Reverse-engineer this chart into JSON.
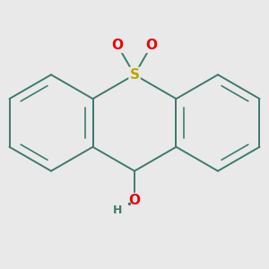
{
  "background_color": "#e9e9e9",
  "bond_color": "#3d7a6e",
  "bond_width": 1.4,
  "S_color": "#b8a800",
  "O_color": "#ee0000",
  "H_color": "#3d7a6e",
  "font_size_S": 11,
  "font_size_O": 11,
  "font_size_H": 9,
  "fig_size": [
    3.0,
    3.0
  ],
  "dpi": 100,
  "xlim": [
    -1.7,
    1.7
  ],
  "ylim": [
    -1.65,
    1.55
  ]
}
